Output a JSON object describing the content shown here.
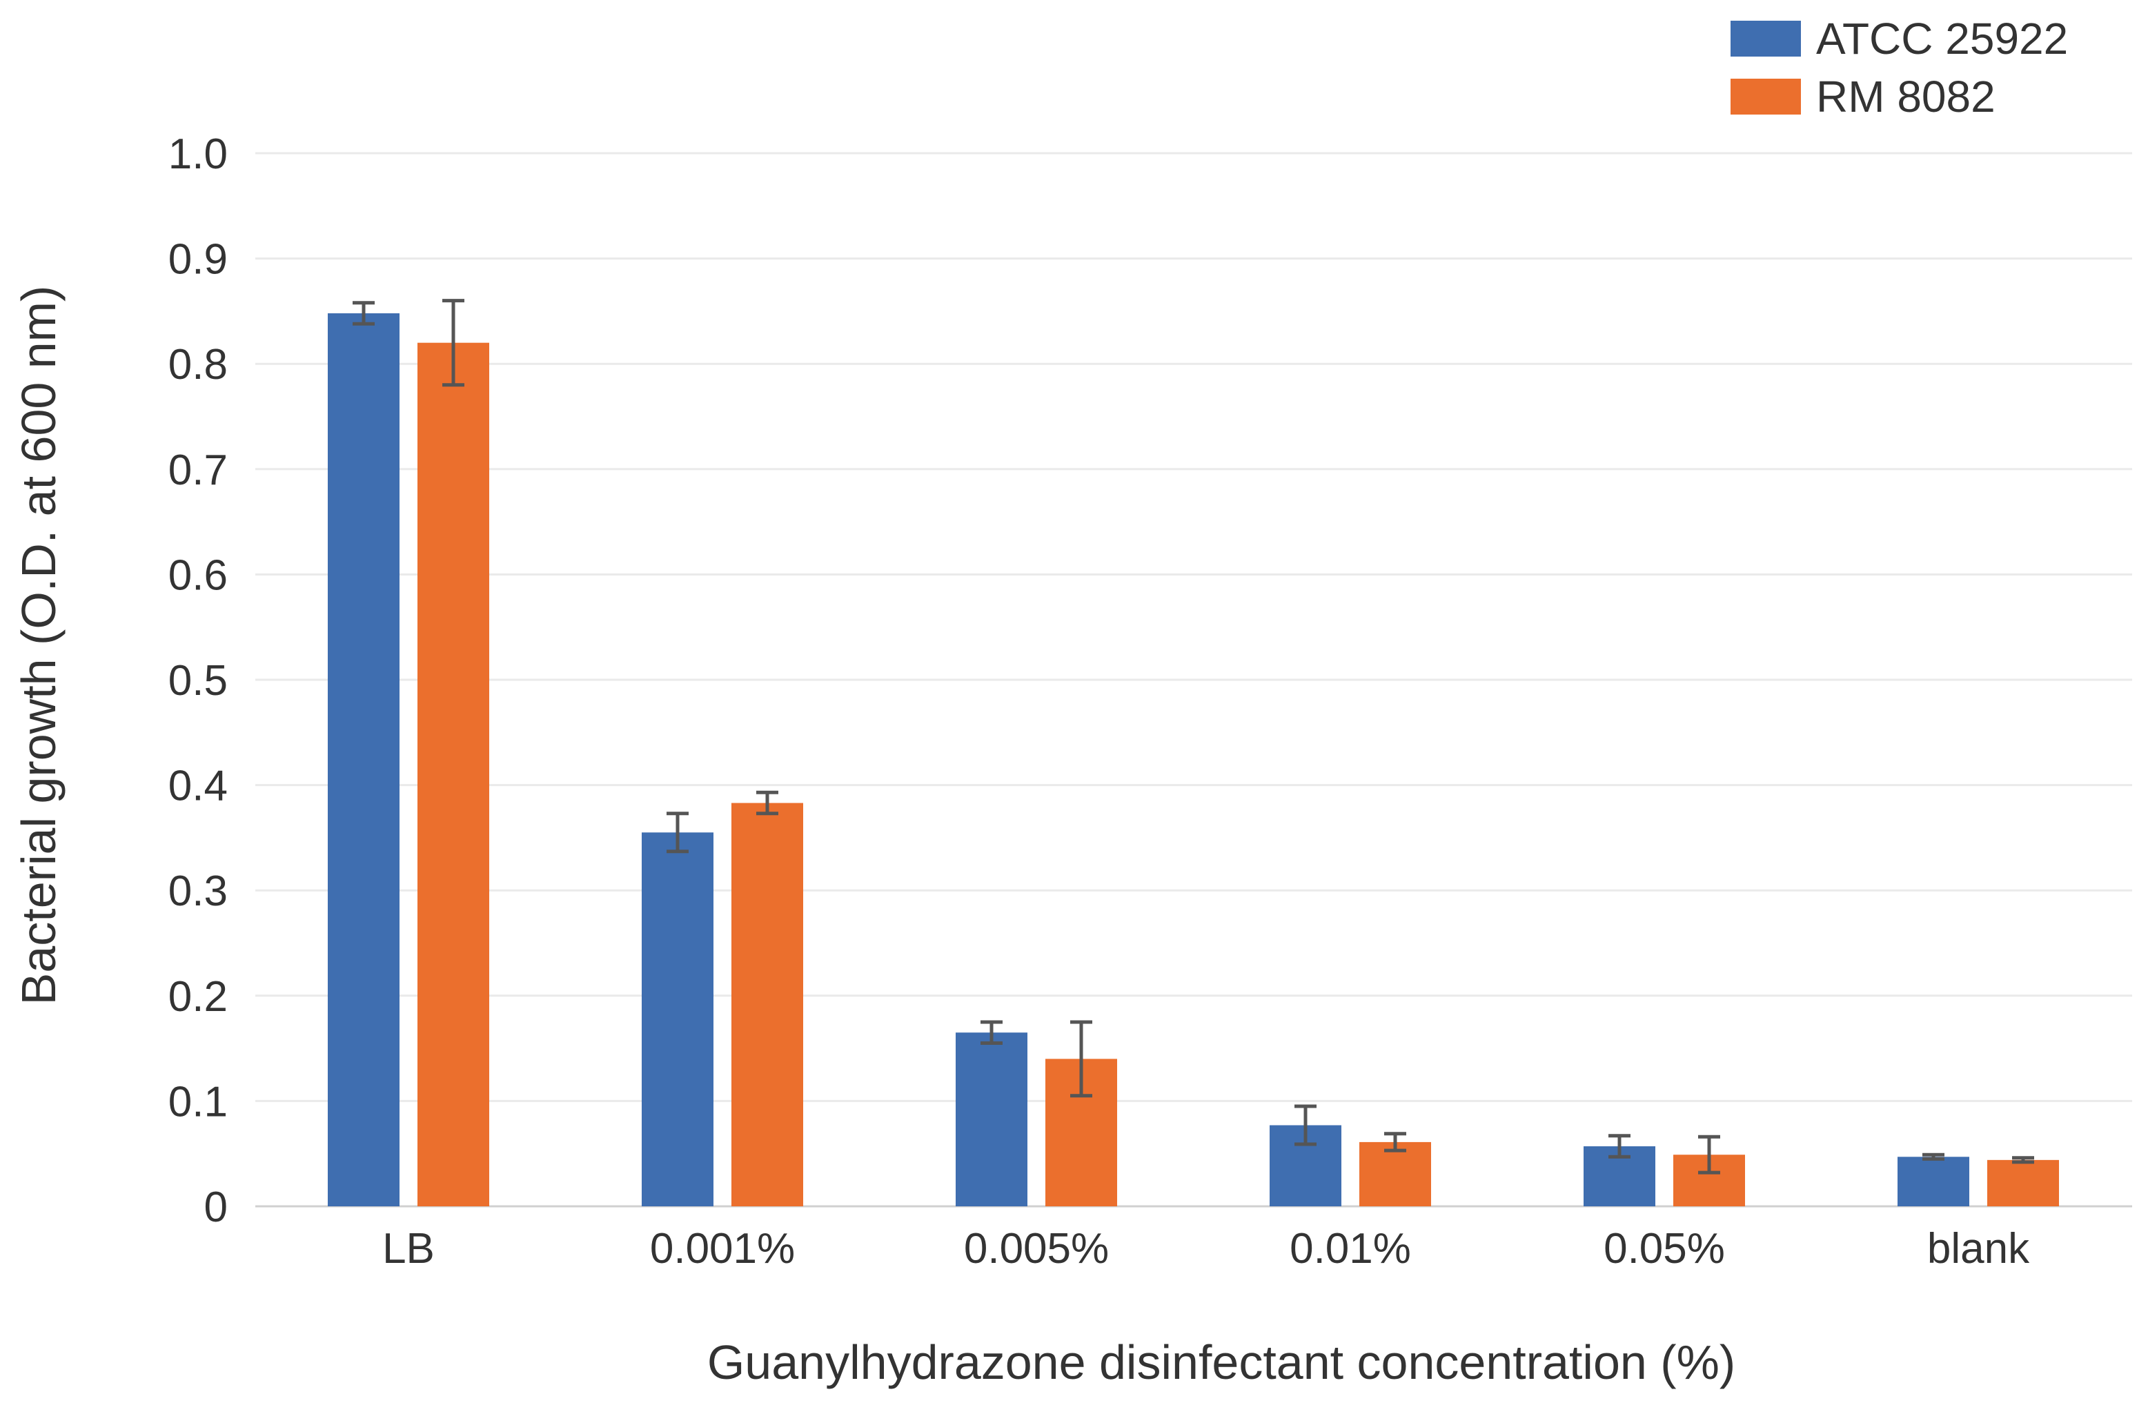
{
  "chart_data": {
    "type": "bar",
    "title": "",
    "xlabel": "Guanylhydrazone disinfectant concentration (%)",
    "ylabel": "Bacterial growth (O.D. at 600 nm)",
    "ylim": [
      0,
      1.0
    ],
    "yticks": [
      0,
      0.1,
      0.2,
      0.3,
      0.4,
      0.5,
      0.6,
      0.7,
      0.8,
      0.9,
      1.0
    ],
    "ytick_labels": [
      "0",
      "0.1",
      "0.2",
      "0.3",
      "0.4",
      "0.5",
      "0.6",
      "0.7",
      "0.8",
      "0.9",
      "1.0"
    ],
    "grid": true,
    "legend_position": "top-right",
    "categories": [
      "LB",
      "0.001%",
      "0.005%",
      "0.01%",
      "0.05%",
      "blank"
    ],
    "series": [
      {
        "name": "ATCC 25922",
        "color": "#3f6eb0",
        "values": [
          0.848,
          0.355,
          0.165,
          0.077,
          0.057,
          0.047
        ],
        "errors": [
          0.01,
          0.018,
          0.01,
          0.018,
          0.01,
          0.002
        ]
      },
      {
        "name": "RM 8082",
        "color": "#eb6f2d",
        "values": [
          0.82,
          0.383,
          0.14,
          0.061,
          0.049,
          0.044
        ],
        "errors": [
          0.04,
          0.01,
          0.035,
          0.008,
          0.017,
          0.002
        ]
      }
    ]
  }
}
